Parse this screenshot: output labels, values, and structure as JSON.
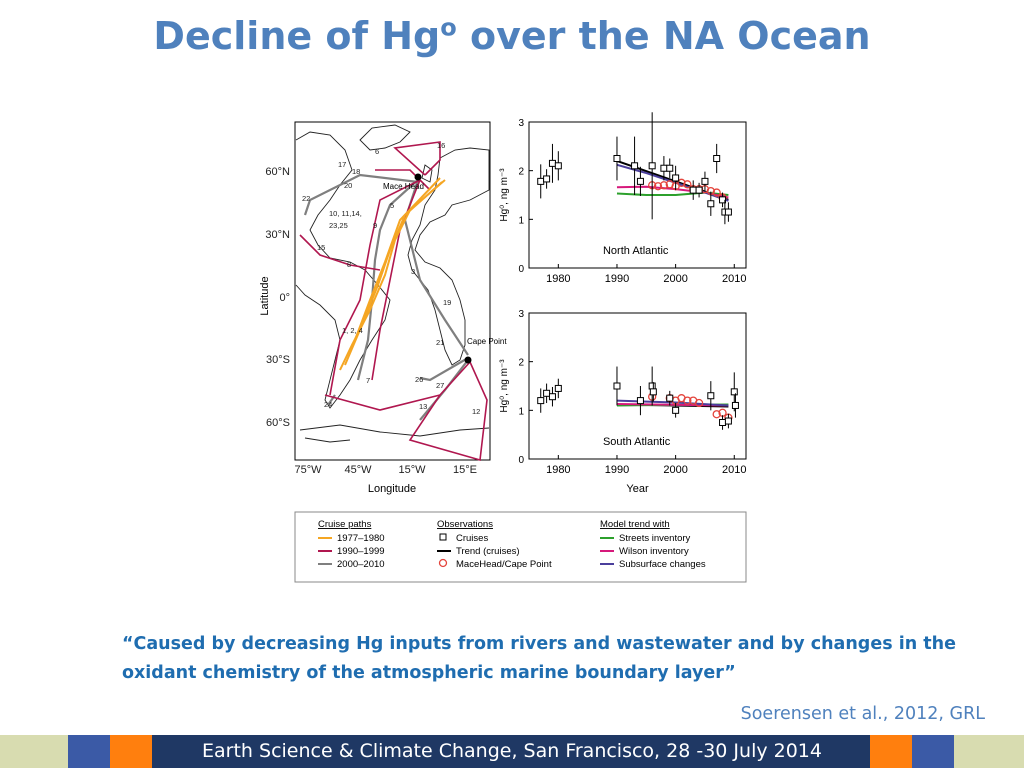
{
  "slide": {
    "title_main": "Decline of Hg",
    "title_sup": "o",
    "title_rest": " over the NA Ocean",
    "quote": "“Caused by decreasing Hg inputs from rivers and wastewater and by changes in the oxidant chemistry of the atmospheric marine boundary layer”",
    "citation": "Soerensen et al., 2012, GRL",
    "footer": "Earth Science & Climate Change, San Francisco, 28 -30 July 2014"
  },
  "colors": {
    "title": "#4f81bd",
    "quote": "#1f6db0",
    "footer_navy": "#1f3864",
    "footer_blue": "#3b5aa6",
    "footer_orange": "#ff7f0e",
    "footer_olive": "#d8dcb0",
    "path_1977": "#f5a623",
    "path_1990": "#b0174f",
    "path_2000": "#7f7f7f",
    "streets": "#2ca02c",
    "wilson": "#d6197b",
    "subsurface": "#4b3f9c",
    "maceheads": "#e4443c"
  },
  "map": {
    "ylabel": "Latitude",
    "xlabel": "Longitude",
    "lat_ticks": [
      "60°N",
      "30°N",
      "0°",
      "30°S",
      "60°S"
    ],
    "lon_ticks": [
      "75°W",
      "45°W",
      "15°W",
      "15°E"
    ],
    "station_labels": [
      "Mace Head",
      "Cape Point"
    ],
    "cruise_labels": [
      "16",
      "17",
      "18",
      "6",
      "20",
      "22",
      "10, 11,14,",
      "23,25",
      "5",
      "9",
      "15",
      "8",
      "3",
      "19",
      "1, 2, 4",
      "21",
      "7",
      "26",
      "27",
      "24",
      "13",
      "12"
    ]
  },
  "legend": {
    "groups": [
      {
        "title": "Cruise paths",
        "items": [
          {
            "label": "1977–1980",
            "color": "#f5a623",
            "symbol": "line"
          },
          {
            "label": "1990–1999",
            "color": "#b0174f",
            "symbol": "line"
          },
          {
            "label": "2000–2010",
            "color": "#7f7f7f",
            "symbol": "line"
          }
        ]
      },
      {
        "title": "Observations",
        "items": [
          {
            "label": "Cruises",
            "color": "#000000",
            "symbol": "square"
          },
          {
            "label": "Trend (cruises)",
            "color": "#000000",
            "symbol": "line"
          },
          {
            "label": "MaceHead/Cape Point",
            "color": "#e4443c",
            "symbol": "circle"
          }
        ]
      },
      {
        "title": "Model trend with",
        "items": [
          {
            "label": "Streets inventory",
            "color": "#2ca02c",
            "symbol": "line"
          },
          {
            "label": "Wilson inventory",
            "color": "#d6197b",
            "symbol": "line"
          },
          {
            "label": "Subsurface changes",
            "color": "#4b3f9c",
            "symbol": "line"
          }
        ]
      }
    ]
  },
  "chart_data": [
    {
      "type": "scatter",
      "title": "North Atlantic",
      "ylabel": "Hg⁰, ng m⁻³",
      "xlim": [
        1975,
        2012
      ],
      "ylim": [
        0,
        3
      ],
      "xticks": [
        1980,
        1990,
        2000,
        2010
      ],
      "yticks": [
        0,
        1,
        2,
        3
      ],
      "cruises": [
        {
          "x": 1977,
          "y": 1.78,
          "err": 0.35
        },
        {
          "x": 1978,
          "y": 1.83,
          "err": 0.2
        },
        {
          "x": 1979,
          "y": 2.15,
          "err": 0.4
        },
        {
          "x": 1980,
          "y": 2.1,
          "err": 0.3
        },
        {
          "x": 1990,
          "y": 2.25,
          "err": 0.45
        },
        {
          "x": 1993,
          "y": 2.1,
          "err": 0.6
        },
        {
          "x": 1994,
          "y": 1.78,
          "err": 0.3
        },
        {
          "x": 1996,
          "y": 2.1,
          "err": 1.1
        },
        {
          "x": 1998,
          "y": 2.05,
          "err": 0.25
        },
        {
          "x": 1999,
          "y": 2.05,
          "err": 0.2
        },
        {
          "x": 2000,
          "y": 1.85,
          "err": 0.25
        },
        {
          "x": 2003,
          "y": 1.6,
          "err": 0.2
        },
        {
          "x": 2004,
          "y": 1.6,
          "err": 0.15
        },
        {
          "x": 2005,
          "y": 1.78,
          "err": 0.2
        },
        {
          "x": 2006,
          "y": 1.32,
          "err": 0.25
        },
        {
          "x": 2007,
          "y": 2.25,
          "err": 0.3
        },
        {
          "x": 2008,
          "y": 1.4,
          "err": 0.15
        },
        {
          "x": 2008.4,
          "y": 1.15,
          "err": 0.25
        },
        {
          "x": 2009,
          "y": 1.15,
          "err": 0.2
        }
      ],
      "maceheads": [
        {
          "x": 1996,
          "y": 1.7
        },
        {
          "x": 1997,
          "y": 1.68
        },
        {
          "x": 1998,
          "y": 1.7
        },
        {
          "x": 1999,
          "y": 1.72
        },
        {
          "x": 2000,
          "y": 1.68
        },
        {
          "x": 2001,
          "y": 1.75
        },
        {
          "x": 2002,
          "y": 1.72
        },
        {
          "x": 2003,
          "y": 1.62
        },
        {
          "x": 2004,
          "y": 1.62
        },
        {
          "x": 2005,
          "y": 1.62
        },
        {
          "x": 2006,
          "y": 1.58
        },
        {
          "x": 2007,
          "y": 1.55
        },
        {
          "x": 2008,
          "y": 1.45
        }
      ],
      "series": [
        {
          "name": "Trend (cruises)",
          "color": "#000000",
          "x": [
            1990,
            2009
          ],
          "y": [
            2.2,
            1.4
          ]
        },
        {
          "name": "Streets inventory",
          "color": "#2ca02c",
          "x": [
            1990,
            1995,
            2000,
            2005,
            2009
          ],
          "y": [
            1.53,
            1.5,
            1.5,
            1.55,
            1.5
          ]
        },
        {
          "name": "Wilson inventory",
          "color": "#d6197b",
          "x": [
            1990,
            1995,
            2000,
            2005,
            2009
          ],
          "y": [
            1.66,
            1.67,
            1.62,
            1.55,
            1.45
          ]
        },
        {
          "name": "Subsurface changes",
          "color": "#4b3f9c",
          "x": [
            1990,
            1995,
            2000,
            2005,
            2009
          ],
          "y": [
            2.12,
            1.95,
            1.75,
            1.55,
            1.38
          ]
        }
      ]
    },
    {
      "type": "scatter",
      "title": "South Atlantic",
      "ylabel": "Hg⁰, ng m⁻³",
      "xlabel": "Year",
      "xlim": [
        1975,
        2012
      ],
      "ylim": [
        0,
        3
      ],
      "xticks": [
        1980,
        1990,
        2000,
        2010
      ],
      "yticks": [
        0,
        1,
        2,
        3
      ],
      "cruises": [
        {
          "x": 1977,
          "y": 1.2,
          "err": 0.25
        },
        {
          "x": 1978,
          "y": 1.35,
          "err": 0.2
        },
        {
          "x": 1979,
          "y": 1.28,
          "err": 0.2
        },
        {
          "x": 1980,
          "y": 1.45,
          "err": 0.2
        },
        {
          "x": 1990,
          "y": 1.5,
          "err": 0.4
        },
        {
          "x": 1994,
          "y": 1.2,
          "err": 0.3
        },
        {
          "x": 1996,
          "y": 1.5,
          "err": 0.4
        },
        {
          "x": 1996.2,
          "y": 1.38,
          "err": 0.2
        },
        {
          "x": 1999,
          "y": 1.25,
          "err": 0.15
        },
        {
          "x": 2000,
          "y": 1.0,
          "err": 0.15
        },
        {
          "x": 2006,
          "y": 1.3,
          "err": 0.3
        },
        {
          "x": 2008,
          "y": 0.75,
          "err": 0.15
        },
        {
          "x": 2009,
          "y": 0.78,
          "err": 0.15
        },
        {
          "x": 2010,
          "y": 1.38,
          "err": 0.4
        },
        {
          "x": 2010.2,
          "y": 1.1,
          "err": 0.25
        }
      ],
      "maceheads": [
        {
          "x": 1996,
          "y": 1.28
        },
        {
          "x": 1999,
          "y": 1.25
        },
        {
          "x": 2000,
          "y": 1.2
        },
        {
          "x": 2001,
          "y": 1.25
        },
        {
          "x": 2002,
          "y": 1.2
        },
        {
          "x": 2003,
          "y": 1.2
        },
        {
          "x": 2004,
          "y": 1.15
        },
        {
          "x": 2007,
          "y": 0.92
        },
        {
          "x": 2008,
          "y": 0.95
        },
        {
          "x": 2009,
          "y": 0.85
        }
      ],
      "series": [
        {
          "name": "Trend (cruises)",
          "color": "#000000",
          "x": [
            1990,
            2009
          ],
          "y": [
            1.12,
            1.08
          ]
        },
        {
          "name": "Streets inventory",
          "color": "#2ca02c",
          "x": [
            1990,
            2009
          ],
          "y": [
            1.1,
            1.12
          ]
        },
        {
          "name": "Wilson inventory",
          "color": "#d6197b",
          "x": [
            1990,
            2009
          ],
          "y": [
            1.13,
            1.1
          ]
        },
        {
          "name": "Subsurface changes",
          "color": "#4b3f9c",
          "x": [
            1990,
            2000,
            2009
          ],
          "y": [
            1.2,
            1.16,
            1.1
          ]
        }
      ]
    }
  ]
}
